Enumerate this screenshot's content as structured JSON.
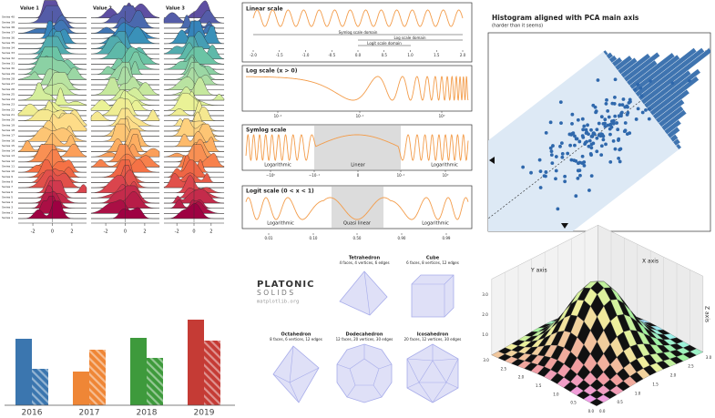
{
  "ridgeline": {
    "columns": [
      "Value 1",
      "Value 2",
      "Value 3"
    ],
    "x_ticks": [
      "-2",
      "0",
      "2"
    ],
    "series_labels": [
      "Series 40",
      "Series 39",
      "Series 38",
      "Series 37",
      "Series 36",
      "Series 35",
      "Series 34",
      "Series 33",
      "Series 32",
      "Series 31",
      "Series 30",
      "Series 29",
      "Series 28",
      "Series 27",
      "Series 26",
      "Series 25",
      "Series 24",
      "Series 23",
      "Series 22",
      "Series 21",
      "Series 20",
      "Series 19",
      "Series 18",
      "Series 17",
      "Series 16",
      "Series 15",
      "Series 14",
      "Series 13",
      "Series 12",
      "Series 11",
      "Series 10",
      "Series 9",
      "Series 8",
      "Series 7",
      "Series 6",
      "Series 5",
      "Series 4",
      "Series 3",
      "Series 2",
      "Series 1"
    ]
  },
  "scales": {
    "linear": {
      "title": "Linear scale",
      "ticks": [
        "-2.0",
        "-1.5",
        "-1.0",
        "-0.5",
        "0.0",
        "0.5",
        "1.0",
        "1.5",
        "2.0"
      ],
      "domains": [
        "Symlog scale domain",
        "Log scale domain",
        "Logit scale domain"
      ]
    },
    "log": {
      "title": "Log scale (x > 0)",
      "ticks": [
        "10⁻²",
        "10⁻¹",
        "10⁰"
      ]
    },
    "symlog": {
      "title": "Symlog scale",
      "ticks": [
        "−10⁰",
        "−10⁻¹",
        "0",
        "10⁻¹",
        "10⁰"
      ],
      "regions": [
        "Logarithmic",
        "Linear",
        "Logarithmic"
      ]
    },
    "logit": {
      "title": "Logit scale (0 < x < 1)",
      "ticks": [
        "0.01",
        "0.10",
        "0.50",
        "0.90",
        "0.99"
      ],
      "regions": [
        "Logarithmic",
        "Quasi linear",
        "Logarithmic"
      ]
    }
  },
  "pca": {
    "title": "Histogram aligned with PCA main axis",
    "subtitle": "(harder than it seems)"
  },
  "bars": {
    "categories": [
      "2016",
      "2017",
      "2018",
      "2019"
    ],
    "colors": [
      "#3b76af",
      "#ef8636",
      "#3e9a3c",
      "#c53b35"
    ],
    "series": [
      {
        "values": [
          73,
          37,
          74,
          94
        ]
      },
      {
        "values": [
          40,
          61,
          52,
          71
        ],
        "hatch": true
      }
    ]
  },
  "solids": {
    "logo": [
      "PLATONIC",
      "SOLIDS",
      "matplotlib.org"
    ],
    "items": [
      {
        "name": "Tetrahedron",
        "info": "4 faces, 4 vertices, 6 edges"
      },
      {
        "name": "Cube",
        "info": "6 faces, 8 vertices, 12 edges"
      },
      {
        "name": "Octahedron",
        "info": "8 faces, 6 vertices, 12 edges"
      },
      {
        "name": "Dodecahedron",
        "info": "12 faces, 20 vertices, 30 edges"
      },
      {
        "name": "Icosahedron",
        "info": "20 faces, 12 vertices, 30 edges"
      }
    ]
  },
  "surface": {
    "axis_labels": [
      "X axis",
      "Y axis",
      "Z axis"
    ],
    "z_ticks": [
      "1.0",
      "2.0",
      "3.0"
    ],
    "x_ticks": [
      "0.0",
      "0.5",
      "1.0",
      "1.5",
      "2.0",
      "2.5",
      "3.0"
    ],
    "y_ticks": [
      "0.0",
      "0.5",
      "1.0",
      "1.5",
      "2.0",
      "2.5",
      "3.0"
    ]
  }
}
